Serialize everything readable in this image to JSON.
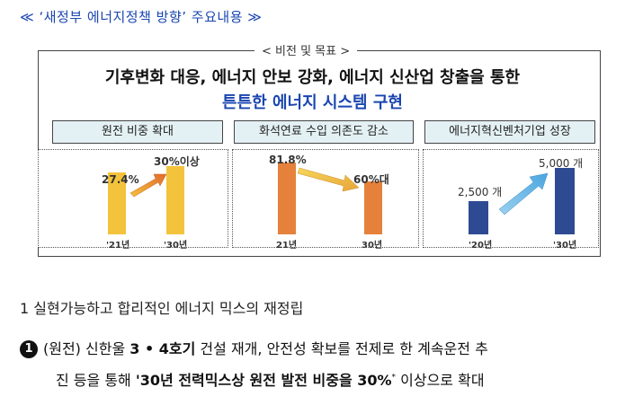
{
  "title": "≪ ‘새정부 에너지정책 방향’ 주요내용 ≫",
  "vision_box": {
    "label": "< 비전 및 목표 >",
    "headline_line1": "기후변화 대응, 에너지 안보 강화, 에너지 신산업 창출을 통한",
    "headline_line2": "튼튼한 에너지 시스템 구현"
  },
  "categories": [
    "원전 비중 확대",
    "화석연료 수입 의존도 감소",
    "에너지혁신벤처기업 성장"
  ],
  "colors": {
    "accent_blue": "#1a46b0",
    "bar_yellow": "#f3c33c",
    "bar_orange": "#e6813c",
    "bar_navy": "#2e4a93"
  },
  "chart_data": [
    {
      "type": "bar",
      "categories": [
        "'21년",
        "'30년"
      ],
      "values": [
        27.4,
        30
      ],
      "value_labels": [
        "27.4%",
        "30%이상"
      ],
      "title": "원전 비중 확대"
    },
    {
      "type": "bar",
      "categories": [
        "21년",
        "30년"
      ],
      "values": [
        81.8,
        60
      ],
      "value_labels": [
        "81.8%",
        "60%대"
      ],
      "title": "화석연료 수입 의존도 감소"
    },
    {
      "type": "bar",
      "categories": [
        "'20년",
        "'30년"
      ],
      "values": [
        2500,
        5000
      ],
      "value_labels": [
        "2,500 개",
        "5,000 개"
      ],
      "title": "에너지혁신벤처기업 성장"
    }
  ],
  "body": {
    "item1": "1  실현가능하고 합리적인 에너지 믹스의 재정립",
    "bullet_num": "1",
    "bullet_prefix": "(원전) 신한울 ",
    "bullet_bold": "3 • 4호기",
    "bullet_rest": " 건설 재개, 안전성 확보를 전제로 한 계속운전 추",
    "cont_prefix": "진 등을 통해 ",
    "cont_bold": "'30년 전력믹스상 원전 발전 비중을 30%",
    "cont_sup": "*",
    "cont_rest": " 이상으로 확대"
  }
}
